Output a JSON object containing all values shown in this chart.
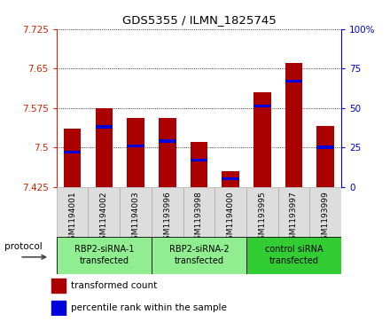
{
  "title": "GDS5355 / ILMN_1825745",
  "samples": [
    "GSM1194001",
    "GSM1194002",
    "GSM1194003",
    "GSM1193996",
    "GSM1193998",
    "GSM1194000",
    "GSM1193995",
    "GSM1193997",
    "GSM1193999"
  ],
  "transformed_counts": [
    7.535,
    7.575,
    7.555,
    7.555,
    7.51,
    7.455,
    7.605,
    7.66,
    7.54
  ],
  "percentile_ranks": [
    22,
    38,
    26,
    29,
    17,
    5,
    51,
    67,
    25
  ],
  "ymin": 7.425,
  "ymax": 7.725,
  "yticks": [
    7.425,
    7.5,
    7.575,
    7.65,
    7.725
  ],
  "right_yticks": [
    0,
    25,
    50,
    75,
    100
  ],
  "bar_bottom": 7.425,
  "groups": [
    {
      "label": "RBP2-siRNA-1\ntransfected",
      "start": 0,
      "end": 3,
      "color": "#90EE90"
    },
    {
      "label": "RBP2-siRNA-2\ntransfected",
      "start": 3,
      "end": 6,
      "color": "#90EE90"
    },
    {
      "label": "control siRNA\ntransfected",
      "start": 6,
      "end": 9,
      "color": "#32CD32"
    }
  ],
  "bar_color": "#AA0000",
  "percentile_color": "#0000DD",
  "bar_width": 0.55,
  "legend_items": [
    {
      "label": "transformed count",
      "color": "#AA0000"
    },
    {
      "label": "percentile rank within the sample",
      "color": "#0000DD"
    }
  ],
  "protocol_label": "protocol",
  "left_axis_color": "#CC2200",
  "right_axis_color": "#0000CC",
  "sample_box_color": "#DDDDDD",
  "sample_box_edge": "#AAAAAA"
}
